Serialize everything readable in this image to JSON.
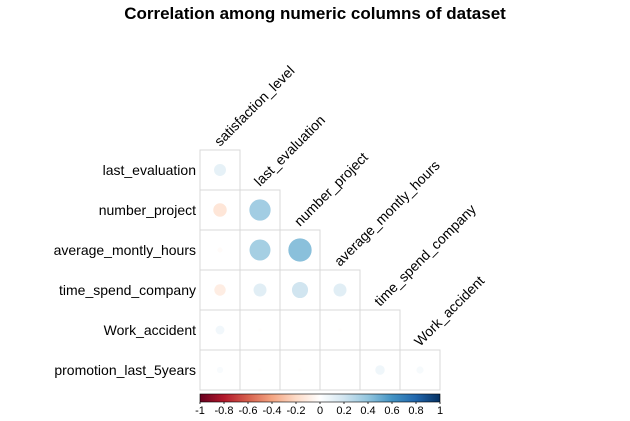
{
  "chart_data": {
    "type": "heatmap",
    "subtype": "corrplot-circle-lower",
    "title": "Correlation among numeric columns of dataset",
    "row_labels": [
      "last_evaluation",
      "number_project",
      "average_montly_hours",
      "time_spend_company",
      "Work_accident",
      "promotion_last_5years"
    ],
    "col_labels": [
      "satisfaction_level",
      "last_evaluation",
      "number_project",
      "average_montly_hours",
      "time_spend_company",
      "Work_accident"
    ],
    "matrix": [
      [
        0.11
      ],
      [
        -0.14,
        0.35
      ],
      [
        -0.02,
        0.34,
        0.42
      ],
      [
        -0.1,
        0.13,
        0.2,
        0.13
      ],
      [
        0.06,
        -0.01,
        0.0,
        -0.01,
        0.0
      ],
      [
        0.03,
        -0.01,
        -0.01,
        0.0,
        0.07,
        0.04
      ]
    ],
    "color_range": [
      -1,
      1
    ],
    "colorbar_ticks": [
      "-1",
      "-0.8",
      "-0.6",
      "-0.4",
      "-0.2",
      "0",
      "0.2",
      "0.4",
      "0.6",
      "0.8",
      "1"
    ],
    "colors": {
      "negative_end": "#67001f",
      "mid": "#ffffff",
      "positive_end": "#053061",
      "grid": "#d9d9d9"
    },
    "legend_position": "bottom"
  }
}
